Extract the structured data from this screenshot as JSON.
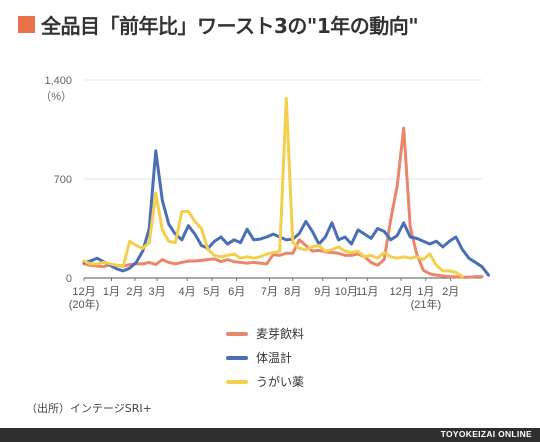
{
  "title": "全品目「前年比」ワースト3の\"1年の動向\"",
  "source": "（出所）インテージSRI+",
  "footer": "TOYOKEIZAI ONLINE",
  "colors": {
    "accent": "#e8714a",
    "grid": "#dddddd",
    "axis": "#555555"
  },
  "chart_data": {
    "type": "line",
    "ylim": [
      0,
      1400
    ],
    "y_ticks": [
      {
        "value": 0,
        "label": "0"
      },
      {
        "value": 700,
        "label": "700"
      },
      {
        "value": 1400,
        "label": "1,400"
      }
    ],
    "y_unit": "（%）",
    "x_tick_labels": [
      {
        "label": "12月",
        "sub": "(20年)",
        "x": 0
      },
      {
        "label": "1月",
        "x": 4.2
      },
      {
        "label": "2月",
        "x": 7.8
      },
      {
        "label": "3月",
        "x": 11.2
      },
      {
        "label": "4月",
        "x": 15.8
      },
      {
        "label": "5月",
        "x": 19.6
      },
      {
        "label": "6月",
        "x": 23.4
      },
      {
        "label": "7月",
        "x": 28.4
      },
      {
        "label": "8月",
        "x": 32.0
      },
      {
        "label": "9月",
        "x": 36.6
      },
      {
        "label": "10月",
        "x": 40.2
      },
      {
        "label": "11月",
        "x": 43.4
      },
      {
        "label": "12月",
        "x": 48.6
      },
      {
        "label": "1月",
        "sub": "(21年)",
        "x": 52.4
      },
      {
        "label": "2月",
        "x": 56.2
      }
    ],
    "x_range": [
      0,
      61
    ],
    "series": [
      {
        "name": "麦芽飲料",
        "color": "#e8876b",
        "values": [
          100,
          90,
          85,
          80,
          95,
          90,
          85,
          95,
          100,
          100,
          110,
          95,
          130,
          110,
          100,
          110,
          120,
          120,
          125,
          130,
          135,
          115,
          130,
          115,
          110,
          105,
          110,
          105,
          100,
          165,
          160,
          175,
          175,
          270,
          230,
          190,
          195,
          185,
          180,
          175,
          160,
          160,
          170,
          150,
          110,
          90,
          130,
          410,
          650,
          1060,
          360,
          170,
          55,
          30,
          20,
          15,
          10,
          8,
          5,
          5,
          10,
          10
        ]
      },
      {
        "name": "体温計",
        "color": "#4a6fb5",
        "values": [
          110,
          120,
          140,
          115,
          90,
          65,
          50,
          70,
          110,
          190,
          350,
          900,
          550,
          380,
          310,
          270,
          370,
          310,
          230,
          210,
          260,
          290,
          240,
          270,
          250,
          345,
          270,
          275,
          290,
          310,
          290,
          270,
          275,
          315,
          400,
          330,
          240,
          290,
          390,
          270,
          290,
          240,
          340,
          310,
          280,
          350,
          330,
          270,
          300,
          390,
          290,
          280,
          260,
          240,
          260,
          220,
          260,
          290,
          200,
          140,
          110,
          80,
          20
        ]
      },
      {
        "name": "うがい薬",
        "color": "#f2cf4c",
        "values": [
          120,
          100,
          100,
          110,
          100,
          90,
          80,
          260,
          230,
          210,
          250,
          600,
          340,
          260,
          250,
          470,
          470,
          400,
          350,
          200,
          160,
          150,
          160,
          170,
          140,
          150,
          140,
          150,
          170,
          180,
          190,
          1270,
          250,
          210,
          200,
          220,
          230,
          190,
          200,
          220,
          190,
          180,
          190,
          150,
          160,
          140,
          180,
          150,
          140,
          150,
          140,
          150,
          130,
          170,
          90,
          50,
          50,
          40,
          10
        ]
      }
    ]
  }
}
